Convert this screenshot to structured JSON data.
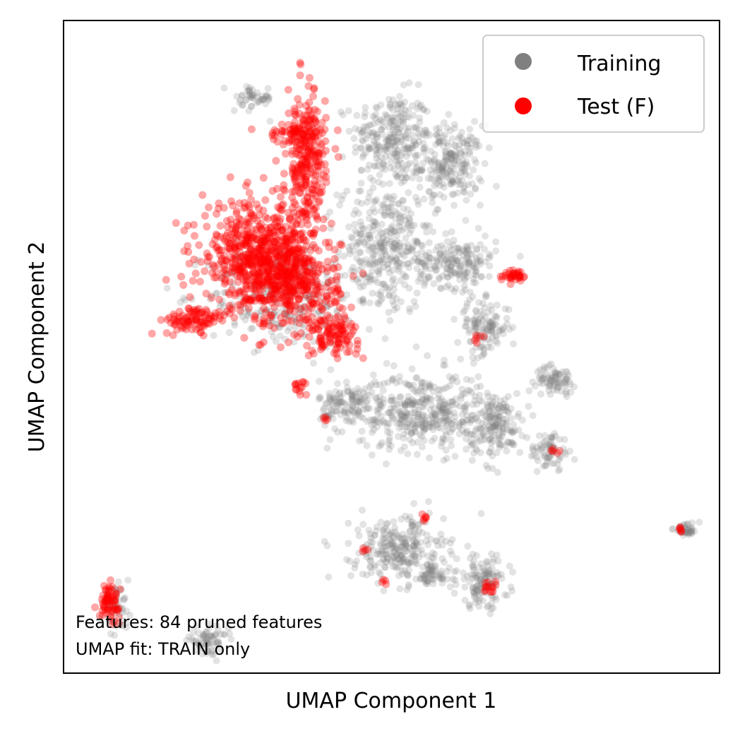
{
  "chart_data": {
    "type": "scatter",
    "title": "",
    "xlabel": "UMAP Component 1",
    "ylabel": "UMAP Component 2",
    "grid": false,
    "ticks_shown": false,
    "legend_position": "top-right",
    "annotations": [
      "Features: 84 pruned features",
      "UMAP fit: TRAIN only"
    ],
    "series": [
      {
        "name": "Training",
        "color": "#808080",
        "clusters": [
          {
            "cx": 0.5,
            "cy": 0.82,
            "rx": 0.06,
            "ry": 0.07,
            "n": 260
          },
          {
            "cx": 0.59,
            "cy": 0.78,
            "rx": 0.05,
            "ry": 0.06,
            "n": 220
          },
          {
            "cx": 0.49,
            "cy": 0.65,
            "rx": 0.07,
            "ry": 0.1,
            "n": 360
          },
          {
            "cx": 0.33,
            "cy": 0.58,
            "rx": 0.11,
            "ry": 0.08,
            "n": 280
          },
          {
            "cx": 0.6,
            "cy": 0.63,
            "rx": 0.06,
            "ry": 0.04,
            "n": 180
          },
          {
            "cx": 0.64,
            "cy": 0.53,
            "rx": 0.04,
            "ry": 0.04,
            "n": 120
          },
          {
            "cx": 0.55,
            "cy": 0.4,
            "rx": 0.1,
            "ry": 0.06,
            "n": 420
          },
          {
            "cx": 0.43,
            "cy": 0.41,
            "rx": 0.04,
            "ry": 0.04,
            "n": 120
          },
          {
            "cx": 0.66,
            "cy": 0.38,
            "rx": 0.04,
            "ry": 0.05,
            "n": 150
          },
          {
            "cx": 0.75,
            "cy": 0.45,
            "rx": 0.03,
            "ry": 0.02,
            "n": 80
          },
          {
            "cx": 0.74,
            "cy": 0.34,
            "rx": 0.03,
            "ry": 0.03,
            "n": 70
          },
          {
            "cx": 0.51,
            "cy": 0.19,
            "rx": 0.07,
            "ry": 0.05,
            "n": 260
          },
          {
            "cx": 0.64,
            "cy": 0.14,
            "rx": 0.04,
            "ry": 0.04,
            "n": 130
          },
          {
            "cx": 0.56,
            "cy": 0.15,
            "rx": 0.03,
            "ry": 0.02,
            "n": 60
          },
          {
            "cx": 0.95,
            "cy": 0.22,
            "rx": 0.02,
            "ry": 0.01,
            "n": 45
          },
          {
            "cx": 0.22,
            "cy": 0.05,
            "rx": 0.03,
            "ry": 0.02,
            "n": 70
          },
          {
            "cx": 0.08,
            "cy": 0.1,
            "rx": 0.02,
            "ry": 0.03,
            "n": 55
          },
          {
            "cx": 0.29,
            "cy": 0.88,
            "rx": 0.03,
            "ry": 0.02,
            "n": 50
          }
        ]
      },
      {
        "name": "Test (F)",
        "color": "#ff0000",
        "clusters": [
          {
            "cx": 0.29,
            "cy": 0.64,
            "rx": 0.08,
            "ry": 0.08,
            "n": 520
          },
          {
            "cx": 0.35,
            "cy": 0.6,
            "rx": 0.07,
            "ry": 0.07,
            "n": 380
          },
          {
            "cx": 0.37,
            "cy": 0.77,
            "rx": 0.03,
            "ry": 0.12,
            "n": 260
          },
          {
            "cx": 0.2,
            "cy": 0.54,
            "rx": 0.05,
            "ry": 0.02,
            "n": 90
          },
          {
            "cx": 0.41,
            "cy": 0.52,
            "rx": 0.04,
            "ry": 0.03,
            "n": 110
          },
          {
            "cx": 0.36,
            "cy": 0.83,
            "rx": 0.05,
            "ry": 0.02,
            "n": 70
          },
          {
            "cx": 0.69,
            "cy": 0.61,
            "rx": 0.02,
            "ry": 0.01,
            "n": 35
          },
          {
            "cx": 0.07,
            "cy": 0.11,
            "rx": 0.015,
            "ry": 0.025,
            "n": 70
          },
          {
            "cx": 0.36,
            "cy": 0.44,
            "rx": 0.01,
            "ry": 0.01,
            "n": 14
          },
          {
            "cx": 0.65,
            "cy": 0.13,
            "rx": 0.015,
            "ry": 0.01,
            "n": 14
          },
          {
            "cx": 0.94,
            "cy": 0.22,
            "rx": 0.005,
            "ry": 0.005,
            "n": 6
          },
          {
            "cx": 0.55,
            "cy": 0.24,
            "rx": 0.005,
            "ry": 0.01,
            "n": 6
          },
          {
            "cx": 0.75,
            "cy": 0.34,
            "rx": 0.005,
            "ry": 0.005,
            "n": 5
          },
          {
            "cx": 0.63,
            "cy": 0.51,
            "rx": 0.01,
            "ry": 0.01,
            "n": 6
          },
          {
            "cx": 0.4,
            "cy": 0.39,
            "rx": 0.005,
            "ry": 0.005,
            "n": 4
          },
          {
            "cx": 0.49,
            "cy": 0.14,
            "rx": 0.005,
            "ry": 0.005,
            "n": 4
          },
          {
            "cx": 0.46,
            "cy": 0.19,
            "rx": 0.005,
            "ry": 0.005,
            "n": 4
          }
        ]
      }
    ],
    "xlim": [
      0,
      1
    ],
    "ylim": [
      0,
      1
    ]
  }
}
